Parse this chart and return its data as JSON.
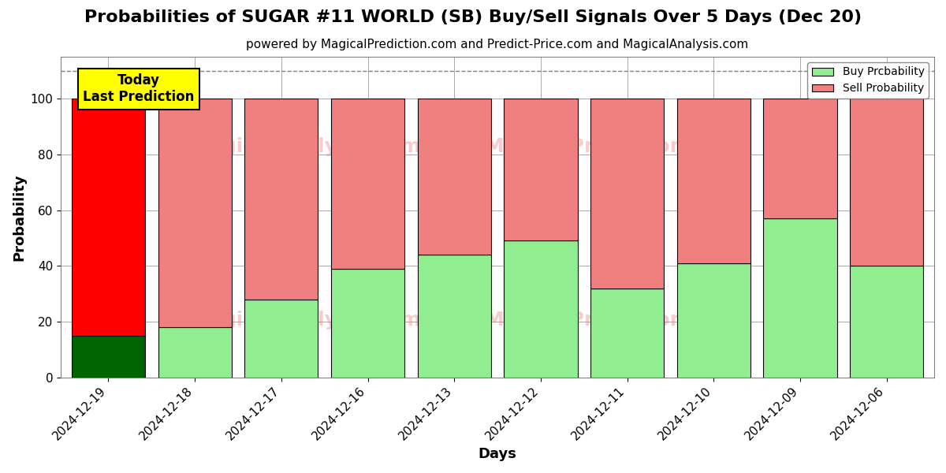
{
  "title": "Probabilities of SUGAR #11 WORLD (SB) Buy/Sell Signals Over 5 Days (Dec 20)",
  "subtitle": "powered by MagicalPrediction.com and Predict-Price.com and MagicalAnalysis.com",
  "xlabel": "Days",
  "ylabel": "Probability",
  "categories": [
    "2024-12-19",
    "2024-12-18",
    "2024-12-17",
    "2024-12-16",
    "2024-12-13",
    "2024-12-12",
    "2024-12-11",
    "2024-12-10",
    "2024-12-09",
    "2024-12-06"
  ],
  "buy_values": [
    15,
    18,
    28,
    39,
    44,
    49,
    32,
    41,
    57,
    40
  ],
  "sell_values": [
    85,
    82,
    72,
    61,
    56,
    51,
    68,
    59,
    43,
    60
  ],
  "buy_color_today": "#006400",
  "sell_color_today": "#FF0000",
  "buy_color_normal": "#90EE90",
  "sell_color_normal": "#F08080",
  "today_label_bg": "#FFFF00",
  "today_label_text": "Today\nLast Prediction",
  "legend_buy": "Buy Prcbability",
  "legend_sell": "Sell Probability",
  "ylim": [
    0,
    115
  ],
  "dashed_line_y": 110,
  "background_color": "#ffffff",
  "grid_color": "#aaaaaa",
  "title_fontsize": 16,
  "subtitle_fontsize": 11,
  "axis_label_fontsize": 13,
  "tick_fontsize": 11,
  "bar_width": 0.85
}
